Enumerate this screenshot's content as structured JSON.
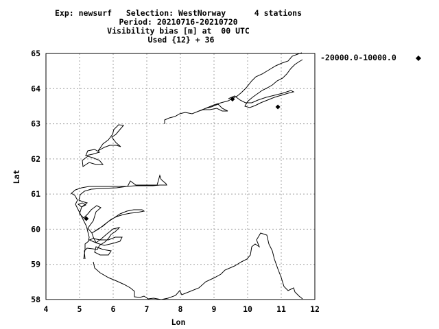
{
  "chart_data": {
    "type": "scatter",
    "title_lines": [
      "Exp: newsurf   Selection: WestNorway      4 stations",
      "Period: 20210716-20210720",
      "Visibility bias [m] at  00 UTC",
      "Used {12} + 36"
    ],
    "xlabel": "Lon",
    "ylabel": "Lat",
    "xlim": [
      4,
      12
    ],
    "ylim": [
      58,
      65
    ],
    "xticks": [
      "4",
      "5",
      "6",
      "7",
      "8",
      "9",
      "10",
      "11",
      "12"
    ],
    "yticks": [
      "58",
      "59",
      "60",
      "61",
      "62",
      "63",
      "64",
      "65"
    ],
    "grid": true,
    "legend_position": "right",
    "series": [
      {
        "name": "-20000.0-10000.0",
        "marker": "diamond",
        "color": "#000000",
        "points": [
          {
            "x": 9.55,
            "y": 63.7
          },
          {
            "x": 10.9,
            "y": 63.48
          },
          {
            "x": 5.2,
            "y": 60.3
          }
        ]
      }
    ]
  }
}
